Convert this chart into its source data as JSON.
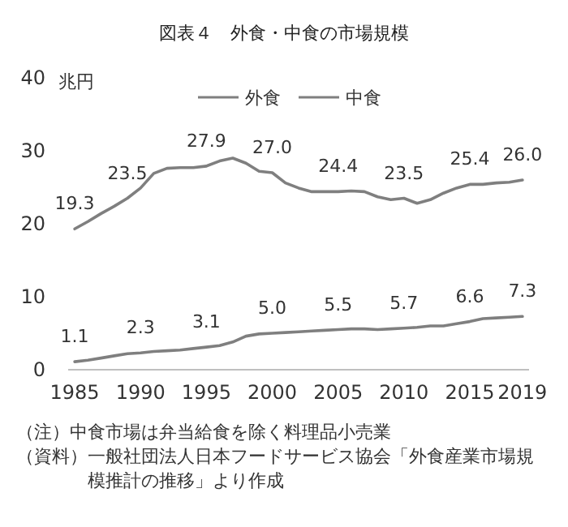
{
  "chart_data": {
    "type": "line",
    "title": "図表４　外食・中食の市場規模",
    "ylabel": "兆円",
    "x": [
      1985,
      1986,
      1987,
      1988,
      1989,
      1990,
      1991,
      1992,
      1993,
      1994,
      1995,
      1996,
      1997,
      1998,
      1999,
      2000,
      2001,
      2002,
      2003,
      2004,
      2005,
      2006,
      2007,
      2008,
      2009,
      2010,
      2011,
      2012,
      2013,
      2014,
      2015,
      2016,
      2017,
      2018,
      2019
    ],
    "xlim": [
      1984.5,
      2019.5
    ],
    "xticks": [
      1985,
      1990,
      1995,
      2000,
      2005,
      2010,
      2015,
      2019
    ],
    "ylim": [
      0,
      40
    ],
    "yticks": [
      0,
      10,
      20,
      30,
      40
    ],
    "series": [
      {
        "name": "外食",
        "color": "#7f7f7f",
        "values": [
          19.3,
          20.3,
          21.4,
          22.4,
          23.5,
          24.9,
          26.9,
          27.6,
          27.7,
          27.7,
          27.9,
          28.6,
          29.0,
          28.3,
          27.2,
          27.0,
          25.6,
          24.9,
          24.4,
          24.4,
          24.4,
          24.5,
          24.4,
          23.7,
          23.3,
          23.5,
          22.8,
          23.3,
          24.2,
          24.9,
          25.4,
          25.4,
          25.6,
          25.7,
          26.0
        ],
        "value_labels": [
          "19.3",
          null,
          null,
          null,
          "23.5",
          null,
          null,
          null,
          null,
          null,
          "27.9",
          null,
          null,
          null,
          null,
          "27.0",
          null,
          null,
          null,
          null,
          "24.4",
          null,
          null,
          null,
          null,
          "23.5",
          null,
          null,
          null,
          null,
          "25.4",
          null,
          null,
          null,
          "26.0"
        ]
      },
      {
        "name": "中食",
        "color": "#7f7f7f",
        "values": [
          1.1,
          1.3,
          1.6,
          1.9,
          2.2,
          2.3,
          2.5,
          2.6,
          2.7,
          2.9,
          3.1,
          3.3,
          3.8,
          4.6,
          4.9,
          5.0,
          5.1,
          5.2,
          5.3,
          5.4,
          5.5,
          5.6,
          5.6,
          5.5,
          5.6,
          5.7,
          5.8,
          6.0,
          6.0,
          6.3,
          6.6,
          7.0,
          7.1,
          7.2,
          7.3
        ],
        "value_labels": [
          "1.1",
          null,
          null,
          null,
          null,
          "2.3",
          null,
          null,
          null,
          null,
          "3.1",
          null,
          null,
          null,
          null,
          "5.0",
          null,
          null,
          null,
          null,
          "5.5",
          null,
          null,
          null,
          null,
          "5.7",
          null,
          null,
          null,
          null,
          "6.6",
          null,
          null,
          null,
          "7.3"
        ]
      }
    ],
    "legend": "top",
    "line_style": "solid",
    "marker": "none",
    "grid": false,
    "annotations": [
      "（注）中食市場は弁当給食を除く料理品小売業",
      "（資料）一般社団法人日本フードサービス協会「外食産業市場規模推計の推移」より作成"
    ]
  }
}
